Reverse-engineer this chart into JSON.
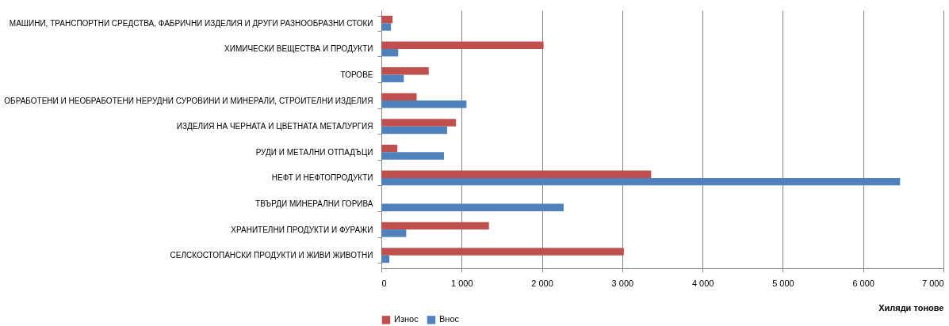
{
  "chart_data": {
    "type": "bar",
    "orientation": "horizontal",
    "xlabel": "Хиляди тонове",
    "categories": [
      "МАШИНИ, ТРАНСПОРТНИ СРЕДСТВА, ФАБРИЧНИ ИЗДЕЛИЯ И ДРУГИ РАЗНООБРАЗНИ СТОКИ",
      "ХИМИЧЕСКИ ВЕЩЕСТВА И ПРОДУКТИ",
      "ТОРОВЕ",
      "ОБРАБОТЕНИ И НЕОБРАБОТЕНИ НЕРУДНИ СУРОВИНИ И МИНЕРАЛИ, СТРОИТЕЛНИ ИЗДЕЛИЯ",
      "ИЗДЕЛИЯ НА ЧЕРНАТА И ЦВЕТНАТА МЕТАЛУРГИЯ",
      "РУДИ И МЕТАЛНИ ОТПАДЪЦИ",
      "НЕФТ И НЕФТОПРОДУКТИ",
      "ТВЪРДИ МИНЕРАЛНИ ГОРИВА",
      "ХРАНИТЕЛНИ ПРОДУКТИ И ФУРАЖИ",
      "СЕЛСКОСТОПАНСКИ ПРОДУКТИ И ЖИВИ ЖИВОТНИ"
    ],
    "series": [
      {
        "name": "Износ",
        "color": "#c0504d",
        "values": [
          140,
          2020,
          590,
          440,
          930,
          200,
          3360,
          null,
          1340,
          3020
        ]
      },
      {
        "name": "Внос",
        "color": "#4f81bd",
        "values": [
          120,
          210,
          280,
          1060,
          820,
          780,
          6460,
          2270,
          310,
          100
        ]
      }
    ],
    "xlim": [
      0,
      7000
    ],
    "xticks": [
      0,
      {
        "value": 1000,
        "label": "1 000"
      },
      {
        "value": 2000,
        "label": "2 000"
      },
      {
        "value": 3000,
        "label": "3 000"
      },
      {
        "value": 4000,
        "label": "4 000"
      },
      {
        "value": 5000,
        "label": "5 000"
      },
      {
        "value": 6000,
        "label": "6 000"
      },
      {
        "value": 7000,
        "label": "7 000"
      }
    ],
    "grid": "x",
    "legend": "bottom"
  }
}
